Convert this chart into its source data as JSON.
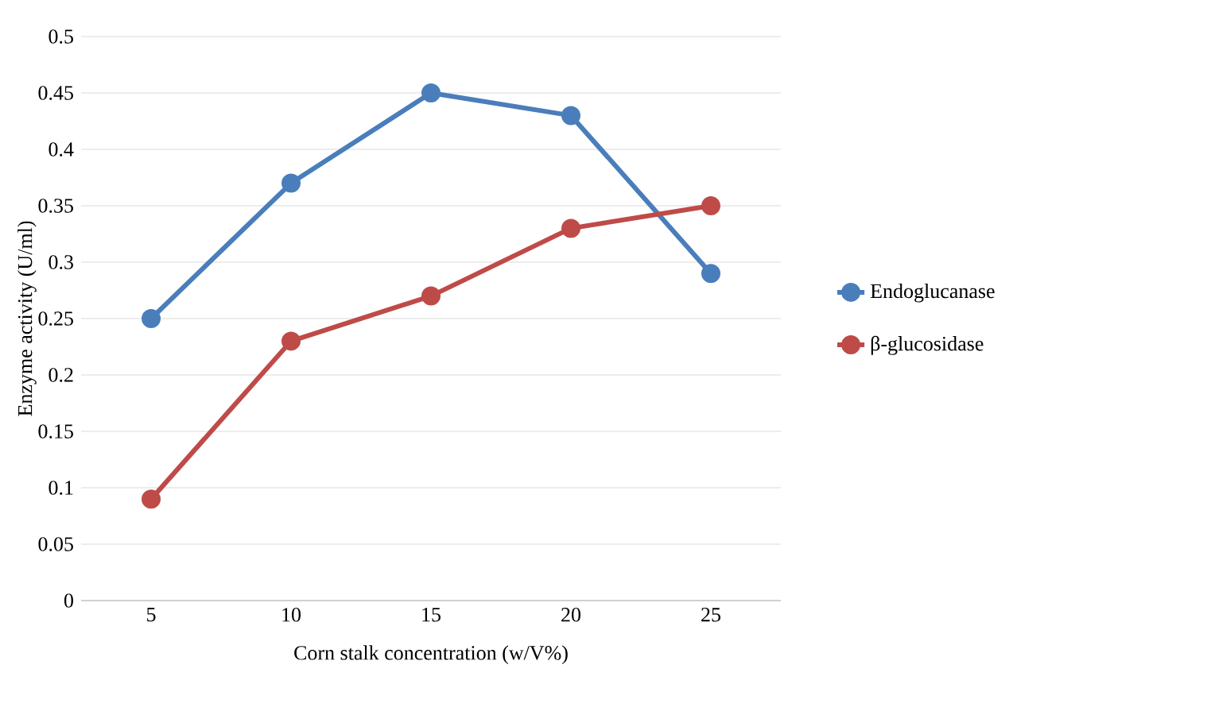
{
  "chart_data": {
    "type": "line",
    "xlabel": "Corn stalk concentration (w/V%)",
    "ylabel": "Enzyme activity (U/ml)",
    "categories": [
      "5",
      "10",
      "15",
      "20",
      "25"
    ],
    "series": [
      {
        "name": "Endoglucanase",
        "color": "#4a7ebb",
        "values": [
          0.25,
          0.37,
          0.45,
          0.43,
          0.29
        ]
      },
      {
        "name": "β-glucosidase",
        "color": "#be4b48",
        "values": [
          0.09,
          0.23,
          0.27,
          0.33,
          0.35
        ]
      }
    ],
    "ylim": [
      0,
      0.5
    ],
    "yticks": [
      0,
      0.05,
      0.1,
      0.15,
      0.2,
      0.25,
      0.3,
      0.35,
      0.4,
      0.45,
      0.5
    ],
    "grid": "y",
    "legend": "right",
    "marker": "circle",
    "line_style": "solid"
  }
}
